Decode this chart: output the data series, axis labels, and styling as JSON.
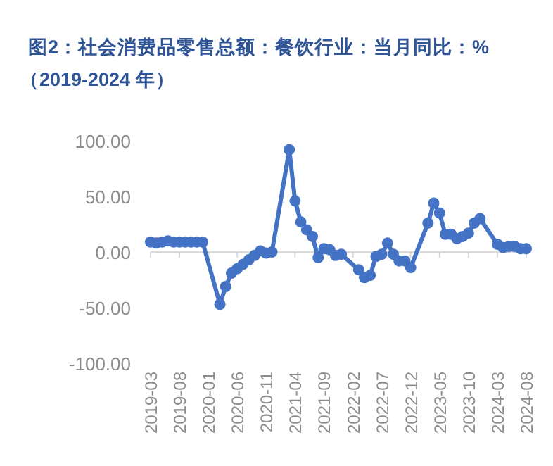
{
  "chart_data": {
    "type": "line",
    "title": "图2：社会消费品零售总额：餐饮行业：当月同比：%",
    "subtitle": "（2019-2024 年）",
    "x": [
      "2019-03",
      "2019-04",
      "2019-05",
      "2019-06",
      "2019-07",
      "2019-08",
      "2019-09",
      "2019-10",
      "2019-11",
      "2019-12",
      "2020-03",
      "2020-04",
      "2020-05",
      "2020-06",
      "2020-07",
      "2020-08",
      "2020-09",
      "2020-10",
      "2020-11",
      "2020-12",
      "2021-03",
      "2021-04",
      "2021-05",
      "2021-06",
      "2021-07",
      "2021-08",
      "2021-09",
      "2021-10",
      "2021-11",
      "2021-12",
      "2022-03",
      "2022-04",
      "2022-05",
      "2022-06",
      "2022-07",
      "2022-08",
      "2022-09",
      "2022-10",
      "2022-11",
      "2022-12",
      "2023-03",
      "2023-04",
      "2023-05",
      "2023-06",
      "2023-07",
      "2023-08",
      "2023-09",
      "2023-10",
      "2023-11",
      "2023-12",
      "2024-03",
      "2024-04",
      "2024-05",
      "2024-06",
      "2024-07",
      "2024-08"
    ],
    "values": [
      9,
      8,
      9,
      10,
      9,
      9,
      9,
      9,
      9,
      9,
      -47,
      -31,
      -19,
      -15,
      -11,
      -7,
      -3,
      1,
      -1,
      0,
      92,
      46,
      27,
      20,
      14,
      -5,
      3,
      2,
      -3,
      -2,
      -16,
      -23,
      -21,
      -4,
      -2,
      8,
      -2,
      -8,
      -8,
      -14,
      26,
      44,
      35,
      16,
      16,
      12,
      14,
      17,
      26,
      30,
      7,
      4,
      5,
      5,
      3,
      3
    ],
    "color": "#4472c4",
    "marker": "circle",
    "ylim": [
      -100,
      100
    ],
    "yticks": [
      {
        "value": -100,
        "label": "-100.00"
      },
      {
        "value": -50,
        "label": "-50.00"
      },
      {
        "value": 0,
        "label": "0.00"
      },
      {
        "value": 50,
        "label": "50.00"
      },
      {
        "value": 100,
        "label": "100.00"
      }
    ],
    "xlim": [
      "2019-03",
      "2024-08"
    ],
    "xticks": [
      "2019-03",
      "2019-08",
      "2020-01",
      "2020-06",
      "2020-11",
      "2021-04",
      "2021-09",
      "2022-02",
      "2022-07",
      "2022-12",
      "2023-05",
      "2023-10",
      "2024-03",
      "2024-08"
    ]
  }
}
